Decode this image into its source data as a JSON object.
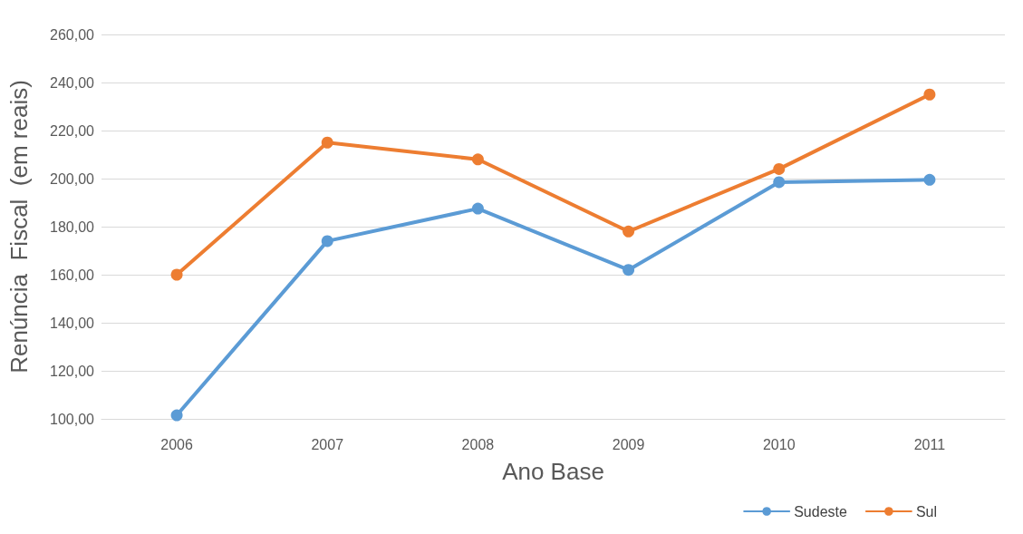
{
  "chart_data": {
    "type": "line",
    "xlabel": "Ano Base",
    "ylabel": "Renúncia  Fiscal  (em reais)",
    "categories": [
      "2006",
      "2007",
      "2008",
      "2009",
      "2010",
      "2011"
    ],
    "series": [
      {
        "name": "Sudeste",
        "color": "#5b9bd5",
        "values": [
          101.5,
          174,
          187.5,
          162,
          198.5,
          199.5
        ]
      },
      {
        "name": "Sul",
        "color": "#ed7d31",
        "values": [
          160,
          215,
          208,
          178,
          204,
          235
        ]
      }
    ],
    "ylim": [
      100,
      260
    ],
    "yticks": [
      {
        "value": 100,
        "label": "100,00"
      },
      {
        "value": 120,
        "label": "120,00"
      },
      {
        "value": 140,
        "label": "140,00"
      },
      {
        "value": 160,
        "label": "160,00"
      },
      {
        "value": 180,
        "label": "180,00"
      },
      {
        "value": 200,
        "label": "200,00"
      },
      {
        "value": 220,
        "label": "220,00"
      },
      {
        "value": 240,
        "label": "240,00"
      },
      {
        "value": 260,
        "label": "260,00"
      }
    ],
    "grid": "y",
    "legend": "bottom right",
    "marker": "circle",
    "line_style": "solid"
  }
}
